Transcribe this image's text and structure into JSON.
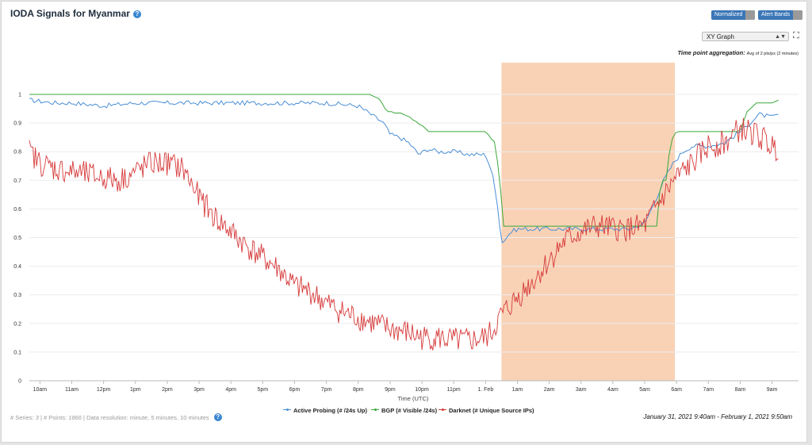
{
  "header": {
    "title": "IODA Signals for Myanmar",
    "help_icon": "?",
    "normalized_label": "Normalized",
    "alert_bands_label": "Alert Bands"
  },
  "controls": {
    "graph_type": "XY Graph",
    "aggregation_label": "Time point aggregation:",
    "aggregation_value": "Avg of 2 pts/px (2 minutes)"
  },
  "footer": {
    "series_label": "# Series:",
    "series_count": "3",
    "points_label": "# Points:",
    "points_count": "1866",
    "resolution_text": "Data resolution: minute, 5 minutes, 10 minutes",
    "time_range": "January 31, 2021 9:40am - February 1, 2021 9:50am"
  },
  "colors": {
    "active_probing": "#4a8fd6",
    "bgp": "#3aa83a",
    "darknet": "#d63a3a",
    "alert_band": "#f9d2b6",
    "toggle": "#3b76b6"
  },
  "chart_data": {
    "type": "line",
    "title": "",
    "xlabel": "Time (UTC)",
    "ylabel": "",
    "xlim": [
      9.667,
      33.833
    ],
    "ylim": [
      0,
      1
    ],
    "x_ticks": [
      "10am",
      "11am",
      "12pm",
      "1pm",
      "2pm",
      "3pm",
      "4pm",
      "5pm",
      "6pm",
      "7pm",
      "8pm",
      "9pm",
      "10pm",
      "11pm",
      "1. Feb",
      "1am",
      "2am",
      "3am",
      "4am",
      "5am",
      "6am",
      "7am",
      "8am",
      "9am"
    ],
    "y_ticks": [
      "0",
      "0.1",
      "0.2",
      "0.3",
      "0.4",
      "0.5",
      "0.6",
      "0.7",
      "0.8",
      "0.9",
      "1"
    ],
    "alert_band": [
      24.5,
      29.95
    ],
    "series": [
      {
        "name": "Active Probing (# /24s Up)",
        "color": "#4a8fd6",
        "x": [
          9.667,
          10.5,
          11.0,
          12.0,
          13.0,
          14.0,
          15.0,
          16.0,
          17.0,
          18.0,
          19.0,
          20.0,
          20.4,
          20.8,
          21.0,
          21.3,
          21.6,
          21.9,
          22.2,
          22.5,
          23.0,
          23.5,
          24.0,
          24.2,
          24.4,
          24.5,
          24.8,
          25.0,
          25.5,
          26.0,
          26.5,
          27.0,
          27.5,
          28.0,
          28.5,
          29.0,
          29.3,
          29.6,
          29.9,
          30.2,
          30.5,
          31.0,
          31.5,
          32.0,
          32.3,
          32.6,
          33.0,
          33.2
        ],
        "y": [
          0.98,
          0.97,
          0.97,
          0.96,
          0.97,
          0.97,
          0.97,
          0.97,
          0.97,
          0.97,
          0.97,
          0.96,
          0.93,
          0.9,
          0.86,
          0.85,
          0.83,
          0.79,
          0.81,
          0.8,
          0.8,
          0.79,
          0.79,
          0.73,
          0.6,
          0.48,
          0.52,
          0.53,
          0.53,
          0.53,
          0.53,
          0.53,
          0.53,
          0.53,
          0.53,
          0.55,
          0.62,
          0.7,
          0.76,
          0.8,
          0.82,
          0.82,
          0.83,
          0.87,
          0.9,
          0.93,
          0.92,
          0.93
        ]
      },
      {
        "name": "BGP (# Visible /24s)",
        "color": "#3aa83a",
        "x": [
          9.667,
          20.3,
          20.6,
          20.8,
          20.9,
          21.0,
          21.5,
          22.0,
          22.2,
          23.0,
          24.0,
          24.3,
          24.45,
          24.55,
          25.0,
          26.0,
          27.0,
          28.0,
          29.0,
          29.4,
          29.5,
          29.7,
          29.8,
          30.0,
          30.5,
          31.0,
          31.5,
          32.0,
          32.2,
          32.5,
          32.8,
          33.0,
          33.2
        ],
        "y": [
          1.0,
          1.0,
          0.99,
          0.96,
          0.94,
          0.94,
          0.93,
          0.89,
          0.87,
          0.87,
          0.87,
          0.83,
          0.7,
          0.54,
          0.54,
          0.54,
          0.54,
          0.54,
          0.54,
          0.54,
          0.7,
          0.7,
          0.83,
          0.87,
          0.87,
          0.87,
          0.87,
          0.87,
          0.94,
          0.97,
          0.97,
          0.97,
          0.98
        ]
      },
      {
        "name": "Darknet (# Unique Source IPs)",
        "color": "#d63a3a",
        "x": [
          9.667,
          10.0,
          10.5,
          11.0,
          11.5,
          12.0,
          12.5,
          13.0,
          13.5,
          14.0,
          14.5,
          15.0,
          15.5,
          16.0,
          16.5,
          17.0,
          17.5,
          18.0,
          18.5,
          19.0,
          19.5,
          20.0,
          20.5,
          21.0,
          21.5,
          22.0,
          22.5,
          23.0,
          23.5,
          24.0,
          24.2,
          24.5,
          25.0,
          25.5,
          26.0,
          26.5,
          27.0,
          27.5,
          28.0,
          28.5,
          29.0,
          29.5,
          30.0,
          30.5,
          31.0,
          31.5,
          32.0,
          32.5,
          33.0,
          33.2
        ],
        "y": [
          0.8,
          0.76,
          0.74,
          0.73,
          0.72,
          0.71,
          0.7,
          0.73,
          0.76,
          0.76,
          0.74,
          0.64,
          0.57,
          0.52,
          0.47,
          0.43,
          0.39,
          0.33,
          0.31,
          0.27,
          0.24,
          0.22,
          0.2,
          0.18,
          0.17,
          0.15,
          0.15,
          0.14,
          0.14,
          0.15,
          0.17,
          0.23,
          0.29,
          0.35,
          0.42,
          0.49,
          0.52,
          0.54,
          0.53,
          0.53,
          0.54,
          0.63,
          0.71,
          0.76,
          0.82,
          0.83,
          0.88,
          0.86,
          0.82,
          0.81
        ]
      }
    ]
  }
}
